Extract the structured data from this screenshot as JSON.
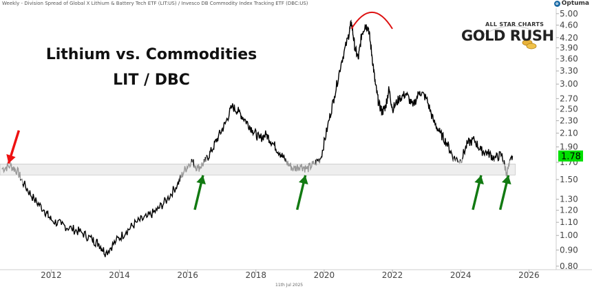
{
  "header": {
    "description": "Weekly - Division Spread of Global X Lithium & Battery Tech ETF (LIT:US) / Invesco DB Commodity Index Tracking ETF (DBC:US)",
    "brand": "Optuma",
    "date": "11th Jul 2025"
  },
  "logo": {
    "top": "ALL STAR CHARTS",
    "main": "GOLD RUSH"
  },
  "chart_data": {
    "type": "line",
    "title": "Lithium vs. Commodities",
    "subtitle": "LIT / DBC",
    "scale": "log",
    "ylim": [
      0.78,
      5.2
    ],
    "xlim": [
      2010.5,
      2026.8
    ],
    "yticks": [
      "5.00",
      "4.60",
      "4.20",
      "3.90",
      "3.60",
      "3.30",
      "3.00",
      "2.70",
      "2.50",
      "2.30",
      "2.10",
      "1.90",
      "1.70",
      "1.50",
      "1.30",
      "1.20",
      "1.10",
      "1.00",
      "0.90",
      "0.80"
    ],
    "xticks": [
      "2012",
      "2014",
      "2016",
      "2018",
      "2020",
      "2022",
      "2024",
      "2026"
    ],
    "last_value": "1.78",
    "support_band": [
      1.55,
      1.68
    ],
    "colors": {
      "line": "#000000",
      "line_in_band": "#999999",
      "band": "#eeeeee",
      "last_badge": "#00e000",
      "arc": "#dd1111",
      "arrow_green": "#127a12",
      "arrow_red": "#ee1111"
    },
    "series": [
      {
        "x": [
          2010.55,
          2010.8,
          2011.0,
          2011.2,
          2011.5,
          2011.8,
          2012.0,
          2012.3,
          2012.6,
          2012.9,
          2013.2,
          2013.4,
          2013.6,
          2013.9,
          2014.2,
          2014.5,
          2014.8,
          2015.1,
          2015.4,
          2015.7,
          2015.9,
          2016.1,
          2016.3,
          2016.5,
          2016.7,
          2016.9,
          2017.1,
          2017.3,
          2017.5,
          2017.7,
          2017.9,
          2018.1,
          2018.3,
          2018.5,
          2018.7,
          2018.9,
          2019.1,
          2019.3,
          2019.5,
          2019.7,
          2019.9,
          2020.1,
          2020.3,
          2020.5,
          2020.7,
          2020.8,
          2020.9,
          2021.0,
          2021.1,
          2021.2,
          2021.3,
          2021.4,
          2021.5,
          2021.6,
          2021.7,
          2021.8,
          2021.9,
          2022.0,
          2022.2,
          2022.4,
          2022.6,
          2022.8,
          2023.0,
          2023.2,
          2023.4,
          2023.6,
          2023.8,
          2024.0,
          2024.2,
          2024.4,
          2024.6,
          2024.8,
          2025.0,
          2025.2,
          2025.35,
          2025.52
        ],
        "values": [
          1.62,
          1.66,
          1.6,
          1.45,
          1.3,
          1.2,
          1.12,
          1.08,
          1.05,
          1.02,
          0.97,
          0.94,
          0.88,
          0.96,
          1.03,
          1.1,
          1.14,
          1.2,
          1.3,
          1.45,
          1.6,
          1.72,
          1.63,
          1.7,
          1.85,
          2.05,
          2.25,
          2.55,
          2.45,
          2.3,
          2.15,
          2.02,
          2.08,
          1.95,
          1.82,
          1.7,
          1.62,
          1.66,
          1.62,
          1.68,
          1.75,
          2.2,
          2.75,
          3.5,
          4.2,
          4.7,
          3.9,
          3.6,
          4.3,
          4.6,
          4.5,
          3.7,
          3.0,
          2.6,
          2.45,
          2.55,
          2.9,
          2.5,
          2.7,
          2.8,
          2.55,
          2.85,
          2.7,
          2.3,
          2.1,
          1.95,
          1.75,
          1.72,
          1.95,
          2.0,
          1.85,
          1.82,
          1.75,
          1.8,
          1.57,
          1.78
        ]
      }
    ],
    "annotations": [
      {
        "type": "arrow",
        "color": "red",
        "x": 2010.75,
        "y": 1.62
      },
      {
        "type": "arrow",
        "color": "green",
        "x": 2016.45,
        "y": 1.57
      },
      {
        "type": "arrow",
        "color": "green",
        "x": 2019.45,
        "y": 1.57
      },
      {
        "type": "arrow",
        "color": "green",
        "x": 2024.6,
        "y": 1.57
      },
      {
        "type": "arrow",
        "color": "green",
        "x": 2025.4,
        "y": 1.57
      },
      {
        "type": "arc",
        "color": "red",
        "x_start": 2020.8,
        "x_end": 2022.0,
        "y": 4.95
      }
    ]
  }
}
